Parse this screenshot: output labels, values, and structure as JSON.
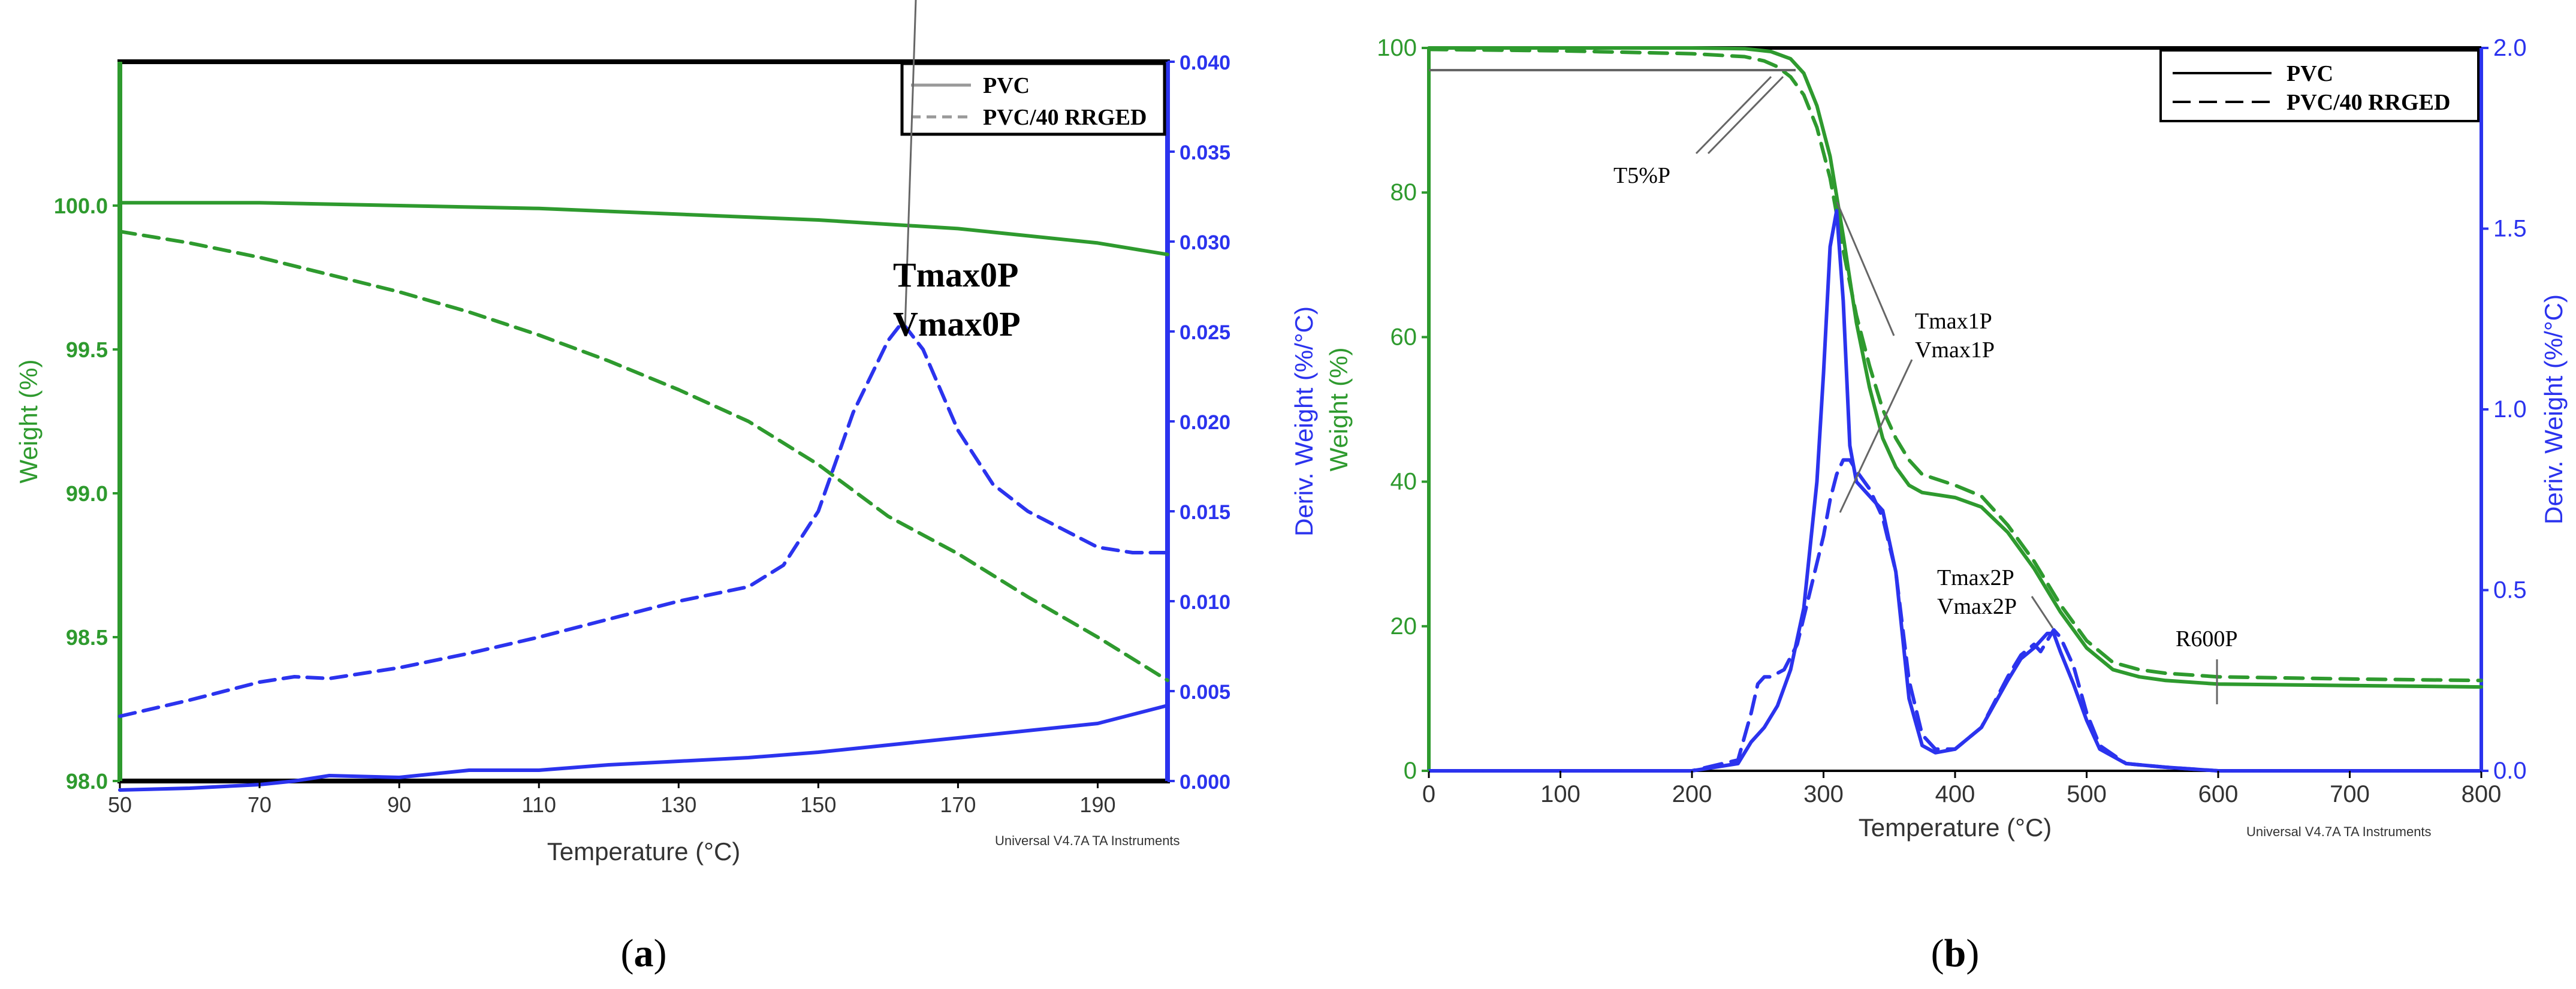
{
  "colors": {
    "weight": "#2e9a2e",
    "deriv": "#2b33ee",
    "frame": "#000000",
    "callout": "#666666"
  },
  "chart_data": [
    {
      "id": "a",
      "type": "line",
      "panel_label": {
        "open": "(",
        "letter": "a",
        "close": ")"
      },
      "xlabel": "Temperature (°C)",
      "ylabel_left": "Weight (%)",
      "ylabel_right": "Deriv. Weight (%/°C)",
      "footer": "Universal V4.7A TA Instruments",
      "xlim": [
        50,
        200
      ],
      "ylim_left": [
        98.0,
        100.5
      ],
      "ylim_right": [
        0.0,
        0.04
      ],
      "xticks": [
        "50",
        "70",
        "90",
        "110",
        "130",
        "150",
        "170",
        "190"
      ],
      "yticks_left": [
        "98.0",
        "98.5",
        "99.0",
        "99.5",
        "100.0"
      ],
      "yticks_right": [
        "0.000",
        "0.005",
        "0.010",
        "0.015",
        "0.020",
        "0.025",
        "0.030",
        "0.035",
        "0.040"
      ],
      "legend": {
        "position": "top-right",
        "entries": [
          "PVC",
          "PVC/40 RRGED"
        ]
      },
      "annotations": [
        {
          "lines": [
            "Tmax0P",
            "Vmax0P"
          ],
          "points_to": [
            162,
            0.0255
          ],
          "axis": "right"
        }
      ],
      "series": [
        {
          "name": "PVC",
          "quantity": "weight",
          "axis": "left",
          "style": "solid",
          "x": [
            50,
            70,
            90,
            110,
            130,
            150,
            170,
            190,
            200
          ],
          "y": [
            100.01,
            100.01,
            100.0,
            99.99,
            99.97,
            99.95,
            99.92,
            99.87,
            99.83
          ]
        },
        {
          "name": "PVC/40 RRGED",
          "quantity": "weight",
          "axis": "left",
          "style": "dashed",
          "x": [
            50,
            60,
            70,
            80,
            90,
            100,
            110,
            120,
            130,
            140,
            150,
            155,
            160,
            170,
            180,
            190,
            200
          ],
          "y": [
            99.91,
            99.87,
            99.82,
            99.76,
            99.7,
            99.63,
            99.55,
            99.46,
            99.36,
            99.25,
            99.1,
            99.01,
            98.92,
            98.79,
            98.64,
            98.5,
            98.35
          ]
        },
        {
          "name": "PVC",
          "quantity": "deriv",
          "axis": "right",
          "style": "solid",
          "x": [
            50,
            60,
            70,
            75,
            80,
            90,
            100,
            110,
            120,
            130,
            140,
            150,
            160,
            170,
            180,
            190,
            195,
            200
          ],
          "y": [
            -0.0005,
            -0.0004,
            -0.0002,
            0.0,
            0.0003,
            0.0002,
            0.0006,
            0.0006,
            0.0009,
            0.0011,
            0.0013,
            0.0016,
            0.002,
            0.0024,
            0.0028,
            0.0032,
            0.0037,
            0.0042
          ]
        },
        {
          "name": "PVC/40 RRGED",
          "quantity": "deriv",
          "axis": "right",
          "style": "dashed",
          "x": [
            50,
            60,
            70,
            75,
            80,
            90,
            100,
            110,
            120,
            130,
            140,
            145,
            150,
            155,
            160,
            162,
            165,
            170,
            175,
            180,
            185,
            190,
            195,
            200
          ],
          "y": [
            0.0036,
            0.0045,
            0.0055,
            0.0058,
            0.0057,
            0.0063,
            0.0071,
            0.008,
            0.009,
            0.01,
            0.0108,
            0.012,
            0.015,
            0.0205,
            0.0245,
            0.0255,
            0.024,
            0.0195,
            0.0165,
            0.015,
            0.014,
            0.013,
            0.0127,
            0.0127
          ]
        }
      ]
    },
    {
      "id": "b",
      "type": "line",
      "panel_label": {
        "open": "(",
        "letter": "b",
        "close": ")"
      },
      "xlabel": "Temperature (°C)",
      "ylabel_left": "Weight (%)",
      "ylabel_right": "Deriv. Weight (%/°C)",
      "footer": "Universal V4.7A TA Instruments",
      "xlim": [
        0,
        800
      ],
      "ylim_left": [
        0,
        100
      ],
      "ylim_right": [
        0.0,
        2.0
      ],
      "xticks": [
        "0",
        "100",
        "200",
        "300",
        "400",
        "500",
        "600",
        "700",
        "800"
      ],
      "yticks_left": [
        "0",
        "20",
        "40",
        "60",
        "80",
        "100"
      ],
      "yticks_right": [
        "0.0",
        "0.5",
        "1.0",
        "1.5",
        "2.0"
      ],
      "legend": {
        "position": "top-right",
        "entries": [
          "PVC",
          "PVC/40 RRGED"
        ]
      },
      "annotations": [
        {
          "lines": [
            "T5%P"
          ]
        },
        {
          "lines": [
            "Tmax1P",
            "Vmax1P"
          ]
        },
        {
          "lines": [
            "Tmax2P",
            "Vmax2P"
          ]
        },
        {
          "lines": [
            "R600P"
          ]
        }
      ],
      "series": [
        {
          "name": "PVC",
          "quantity": "weight",
          "axis": "left",
          "style": "solid",
          "x": [
            0,
            200,
            240,
            260,
            275,
            285,
            295,
            305,
            315,
            325,
            335,
            345,
            355,
            365,
            375,
            400,
            420,
            440,
            460,
            480,
            500,
            520,
            540,
            560,
            600,
            700,
            800
          ],
          "y": [
            100,
            100,
            99.9,
            99.5,
            98.5,
            96.5,
            92,
            85,
            74,
            62,
            53,
            46,
            42,
            39.5,
            38.5,
            37.8,
            36.5,
            33,
            28,
            22,
            17,
            14,
            13,
            12.5,
            12,
            11.8,
            11.6
          ]
        },
        {
          "name": "PVC/40 RRGED",
          "quantity": "weight",
          "axis": "left",
          "style": "dashed",
          "x": [
            0,
            100,
            200,
            240,
            255,
            265,
            275,
            285,
            295,
            305,
            315,
            325,
            335,
            345,
            355,
            365,
            375,
            400,
            420,
            440,
            460,
            480,
            500,
            520,
            540,
            560,
            600,
            700,
            800
          ],
          "y": [
            99.8,
            99.6,
            99.2,
            98.8,
            98.2,
            97.4,
            96,
            93.5,
            89,
            82,
            72,
            63,
            56,
            50,
            46,
            43,
            41,
            39.5,
            38,
            34,
            29,
            23,
            18,
            15,
            14,
            13.5,
            13,
            12.7,
            12.5
          ]
        },
        {
          "name": "PVC",
          "quantity": "deriv",
          "axis": "right",
          "style": "solid",
          "x": [
            0,
            200,
            235,
            245,
            255,
            265,
            275,
            285,
            295,
            300,
            305,
            310,
            315,
            320,
            325,
            335,
            345,
            355,
            365,
            375,
            385,
            400,
            420,
            440,
            450,
            460,
            470,
            475,
            480,
            490,
            500,
            510,
            530,
            560,
            600,
            800
          ],
          "y": [
            0,
            0,
            0.02,
            0.08,
            0.12,
            0.18,
            0.28,
            0.45,
            0.8,
            1.1,
            1.45,
            1.55,
            1.3,
            0.9,
            0.8,
            0.76,
            0.72,
            0.55,
            0.2,
            0.07,
            0.05,
            0.06,
            0.12,
            0.25,
            0.31,
            0.34,
            0.38,
            0.38,
            0.33,
            0.24,
            0.14,
            0.06,
            0.02,
            0.01,
            0.0,
            0.0
          ]
        },
        {
          "name": "PVC/40 RRGED",
          "quantity": "deriv",
          "axis": "right",
          "style": "dashed",
          "x": [
            0,
            200,
            235,
            245,
            250,
            255,
            260,
            270,
            280,
            290,
            300,
            305,
            310,
            315,
            320,
            325,
            335,
            345,
            355,
            365,
            375,
            385,
            400,
            420,
            440,
            450,
            460,
            465,
            470,
            475,
            480,
            490,
            500,
            510,
            530,
            560,
            600,
            800
          ],
          "y": [
            0,
            0,
            0.03,
            0.16,
            0.24,
            0.26,
            0.26,
            0.28,
            0.35,
            0.5,
            0.65,
            0.75,
            0.82,
            0.86,
            0.86,
            0.83,
            0.78,
            0.7,
            0.55,
            0.25,
            0.1,
            0.06,
            0.06,
            0.12,
            0.26,
            0.32,
            0.35,
            0.33,
            0.36,
            0.39,
            0.37,
            0.29,
            0.16,
            0.07,
            0.02,
            0.01,
            0.0,
            0.0
          ]
        }
      ]
    }
  ]
}
